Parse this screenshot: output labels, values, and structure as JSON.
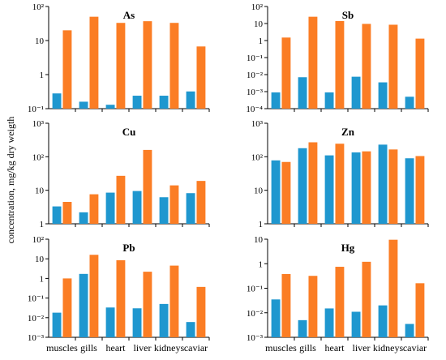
{
  "figure": {
    "ylabel": "concentration, mg/kg dry weigth",
    "colors": {
      "series_a": "#1f97cf",
      "series_b": "#fb7d24"
    }
  },
  "chart_data": [
    {
      "type": "bar",
      "title": "As",
      "yscale": "log",
      "ylim": [
        0.1,
        100
      ],
      "ytick_labels": [
        "10⁻¹",
        "1",
        "10",
        "10²"
      ],
      "categories": [
        "muscles",
        "gills",
        "heart",
        "liver",
        "kidneys",
        "caviar"
      ],
      "series": [
        {
          "values": [
            0.28,
            0.16,
            0.13,
            0.24,
            0.24,
            0.32
          ]
        },
        {
          "values": [
            20,
            50,
            33,
            37,
            33,
            6.7
          ]
        }
      ]
    },
    {
      "type": "bar",
      "title": "Sb",
      "yscale": "log",
      "ylim": [
        0.0001,
        100
      ],
      "ytick_labels": [
        "10⁻⁴",
        "10⁻³",
        "10⁻²",
        "10⁻¹",
        "1",
        "10",
        "10²"
      ],
      "categories": [
        "muscles",
        "gills",
        "heart",
        "liver",
        "kidneys",
        "caviar"
      ],
      "series": [
        {
          "values": [
            0.0009,
            0.007,
            0.0009,
            0.0075,
            0.0035,
            0.0005
          ]
        },
        {
          "values": [
            1.5,
            25,
            14,
            9.5,
            8.5,
            1.3
          ]
        }
      ]
    },
    {
      "type": "bar",
      "title": "Cu",
      "yscale": "log",
      "ylim": [
        1,
        1000
      ],
      "ytick_labels": [
        "1",
        "10",
        "10²",
        "10³"
      ],
      "categories": [
        "muscles",
        "gills",
        "heart",
        "liver",
        "kidneys",
        "caviar"
      ],
      "series": [
        {
          "values": [
            3.3,
            2.2,
            8.5,
            9.5,
            6.2,
            8.2
          ]
        },
        {
          "values": [
            4.5,
            7.6,
            27,
            160,
            14,
            19
          ]
        }
      ]
    },
    {
      "type": "bar",
      "title": "Zn",
      "yscale": "log",
      "ylim": [
        1,
        1000
      ],
      "ytick_labels": [
        "1",
        "10",
        "10²",
        "10³"
      ],
      "categories": [
        "muscles",
        "gills",
        "heart",
        "liver",
        "kidneys",
        "caviar"
      ],
      "series": [
        {
          "values": [
            78,
            180,
            110,
            135,
            230,
            90
          ]
        },
        {
          "values": [
            70,
            270,
            245,
            145,
            165,
            105
          ]
        }
      ]
    },
    {
      "type": "bar",
      "title": "Pb",
      "yscale": "log",
      "ylim": [
        0.001,
        100
      ],
      "ytick_labels": [
        "10⁻³",
        "10⁻²",
        "10⁻¹",
        "1",
        "10",
        "10²"
      ],
      "categories": [
        "muscles",
        "gills",
        "heart",
        "liver",
        "kidneys",
        "caviar"
      ],
      "series": [
        {
          "values": [
            0.018,
            1.7,
            0.033,
            0.03,
            0.05,
            0.006
          ]
        },
        {
          "values": [
            1.0,
            16,
            8.5,
            2.2,
            4.5,
            0.37
          ]
        }
      ]
    },
    {
      "type": "bar",
      "title": "Hg",
      "yscale": "log",
      "ylim": [
        0.001,
        10
      ],
      "ytick_labels": [
        "10⁻³",
        "10⁻²",
        "10⁻¹",
        "1",
        "10"
      ],
      "categories": [
        "muscles",
        "gills",
        "heart",
        "liver",
        "kidneys",
        "caviar"
      ],
      "series": [
        {
          "values": [
            0.035,
            0.005,
            0.015,
            0.011,
            0.02,
            0.0035
          ]
        },
        {
          "values": [
            0.38,
            0.32,
            0.75,
            1.2,
            9.5,
            0.16
          ]
        }
      ]
    }
  ]
}
